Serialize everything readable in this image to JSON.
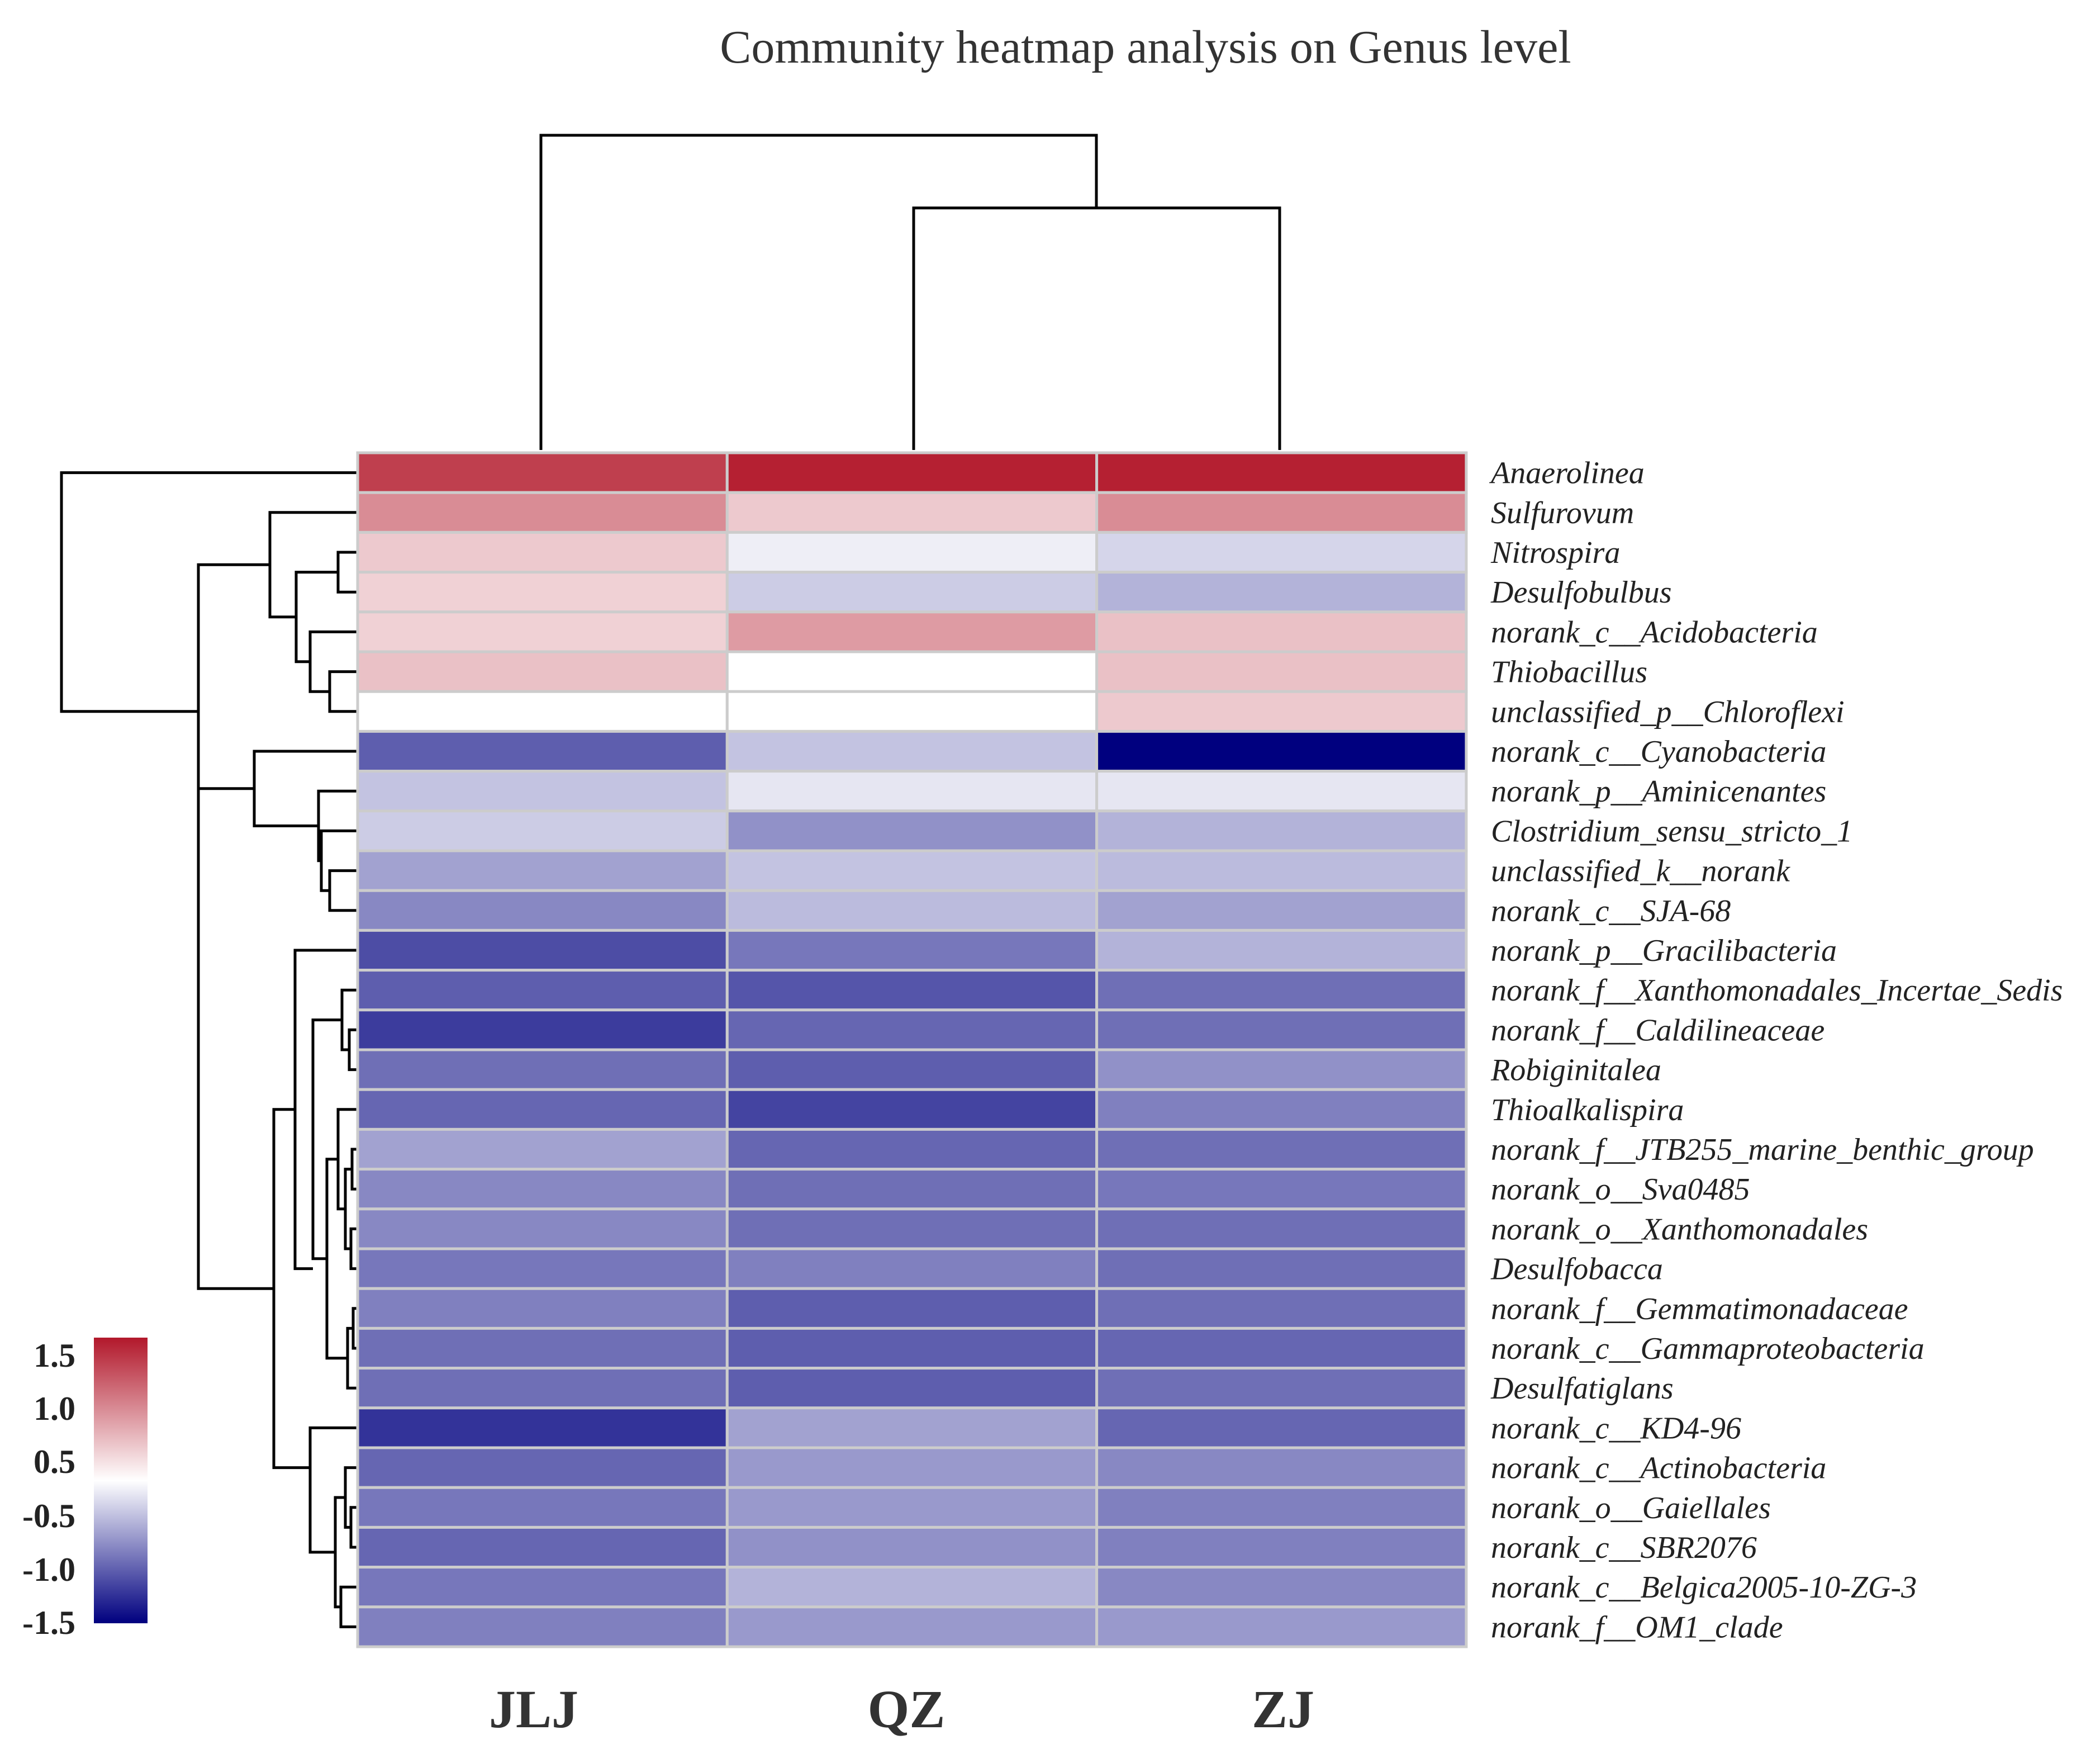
{
  "chart_data": {
    "type": "heatmap",
    "title": "Community heatmap analysis on Genus level",
    "columns": [
      "JLJ",
      "QZ",
      "ZJ"
    ],
    "rows": [
      "Anaerolinea",
      "Sulfurovum",
      "Nitrospira",
      "Desulfobulbus",
      "norank_c__Acidobacteria",
      "Thiobacillus",
      "unclassified_p__Chloroflexi",
      "norank_c__Cyanobacteria",
      "norank_p__Aminicenantes",
      "Clostridium_sensu_stricto_1",
      "unclassified_k__norank",
      "norank_c__SJA-68",
      "norank_p__Gracilibacteria",
      "norank_f__Xanthomonadales_Incertae_Sedis",
      "norank_f__Caldilineaceae",
      "Robiginitalea",
      "Thioalkalispira",
      "norank_f__JTB255_marine_benthic_group",
      "norank_o__Sva0485",
      "norank_o__Xanthomonadales",
      "Desulfobacca",
      "norank_f__Gemmatimonadaceae",
      "norank_c__Gammaproteobacteria",
      "Desulfatiglans",
      "norank_c__KD4-96",
      "norank_c__Actinobacteria",
      "norank_o__Gaiellales",
      "norank_c__SBR2076",
      "norank_c__Belgica2005-10-ZG-3",
      "norank_f__OM1_clade"
    ],
    "values": [
      [
        1.25,
        1.45,
        1.45
      ],
      [
        0.75,
        0.35,
        0.75
      ],
      [
        0.35,
        -0.1,
        -0.25
      ],
      [
        0.3,
        -0.3,
        -0.45
      ],
      [
        0.3,
        0.65,
        0.4
      ],
      [
        0.4,
        0.0,
        0.4
      ],
      [
        0.0,
        0.0,
        0.35
      ],
      [
        -0.95,
        -0.35,
        -1.5
      ],
      [
        -0.35,
        -0.15,
        -0.15
      ],
      [
        -0.3,
        -0.65,
        -0.45
      ],
      [
        -0.55,
        -0.35,
        -0.4
      ],
      [
        -0.7,
        -0.4,
        -0.55
      ],
      [
        -1.05,
        -0.8,
        -0.45
      ],
      [
        -0.95,
        -1.0,
        -0.85
      ],
      [
        -1.15,
        -0.9,
        -0.85
      ],
      [
        -0.85,
        -0.95,
        -0.65
      ],
      [
        -0.9,
        -1.1,
        -0.75
      ],
      [
        -0.55,
        -0.9,
        -0.85
      ],
      [
        -0.7,
        -0.85,
        -0.8
      ],
      [
        -0.7,
        -0.85,
        -0.85
      ],
      [
        -0.8,
        -0.75,
        -0.85
      ],
      [
        -0.75,
        -0.95,
        -0.85
      ],
      [
        -0.85,
        -0.95,
        -0.9
      ],
      [
        -0.85,
        -0.95,
        -0.85
      ],
      [
        -1.2,
        -0.55,
        -0.9
      ],
      [
        -0.9,
        -0.6,
        -0.7
      ],
      [
        -0.8,
        -0.6,
        -0.75
      ],
      [
        -0.9,
        -0.65,
        -0.75
      ],
      [
        -0.8,
        -0.45,
        -0.7
      ],
      [
        -0.75,
        -0.6,
        -0.6
      ]
    ],
    "color_scale": {
      "min": -1.5,
      "max": 1.5,
      "low_color": "#00007f",
      "mid_color": "#ffffff",
      "high_color": "#b2182b",
      "tick_labels": [
        "1.5",
        "1.0",
        "0.5",
        "-0.5",
        "-1.0",
        "-1.5"
      ]
    },
    "legend_position": "bottom-left",
    "column_dendrogram": "top",
    "row_dendrogram": "left"
  }
}
